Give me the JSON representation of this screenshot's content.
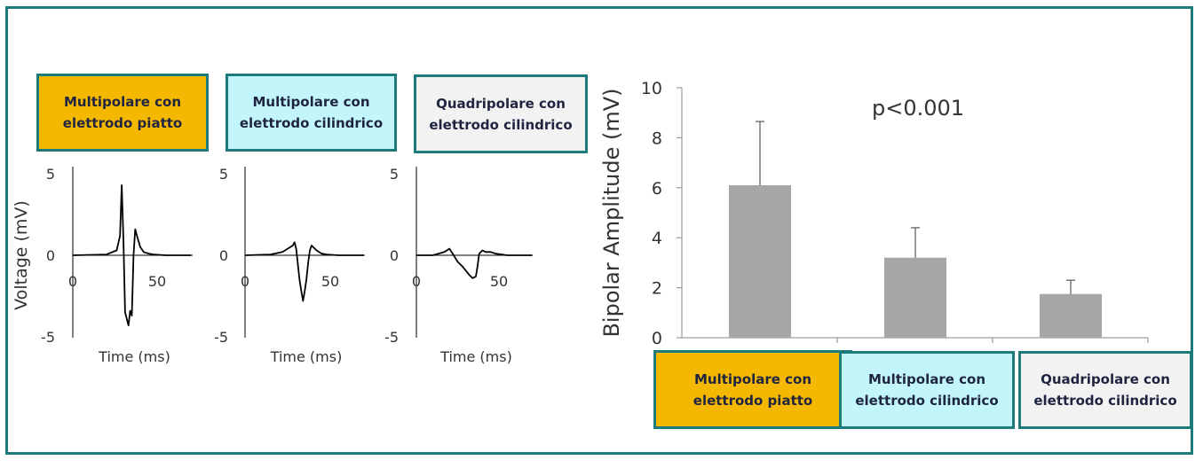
{
  "legend_boxes": [
    {
      "label": "Multipolare con\nelettrodo piatto",
      "bg": "#f5b800"
    },
    {
      "label": "Multipolare con\nelettrodo cilindrico",
      "bg": "#c2f6fb"
    },
    {
      "label": "Quadripolare con\nelettrodo cilindrico",
      "bg": "#f2f2f2"
    }
  ],
  "colors": {
    "frame": "#1e7b7b",
    "bar": "#a6a6a6",
    "axis": "#888888",
    "trace": "#000000"
  },
  "chart_data": [
    {
      "type": "line",
      "ylabel": "Voltage (mV)",
      "xlabel": "Time (ms)",
      "xlim": [
        0,
        70
      ],
      "ylim": [
        -5,
        5
      ],
      "xticks": [
        "0",
        "50"
      ],
      "yticks": [
        "5",
        "0",
        "-5"
      ],
      "series": [
        {
          "x": [
            0,
            20,
            26,
            28,
            29,
            30,
            31,
            33,
            34,
            35,
            36,
            37,
            38,
            40,
            42,
            45,
            48,
            55,
            70
          ],
          "y": [
            0,
            0.05,
            0.3,
            1.2,
            4.3,
            1.0,
            -3.5,
            -4.3,
            -3.4,
            -3.7,
            0,
            1.6,
            1.2,
            0.5,
            0.2,
            0.1,
            0.05,
            0,
            0
          ]
        }
      ]
    },
    {
      "type": "line",
      "ylabel": "",
      "xlabel": "Time (ms)",
      "xlim": [
        0,
        70
      ],
      "ylim": [
        -5,
        5
      ],
      "xticks": [
        "0",
        "50"
      ],
      "yticks": [
        "5",
        "0",
        "-5"
      ],
      "series": [
        {
          "x": [
            0,
            15,
            22,
            28,
            29,
            30,
            32,
            33,
            34,
            35,
            36,
            37,
            38,
            39,
            42,
            45,
            48,
            55,
            70
          ],
          "y": [
            0,
            0.05,
            0.2,
            0.6,
            0.8,
            0.4,
            -1.5,
            -2.2,
            -2.8,
            -2.2,
            -1.5,
            -0.5,
            0.3,
            0.6,
            0.3,
            0.1,
            0.05,
            0,
            0
          ]
        }
      ]
    },
    {
      "type": "line",
      "ylabel": "",
      "xlabel": "Time (ms)",
      "xlim": [
        0,
        70
      ],
      "ylim": [
        -5,
        5
      ],
      "xticks": [
        "0",
        "50"
      ],
      "yticks": [
        "5",
        "0",
        "-5"
      ],
      "series": [
        {
          "x": [
            0,
            10,
            17,
            20,
            22,
            25,
            28,
            32,
            34,
            36,
            37,
            38,
            40,
            42,
            45,
            48,
            55,
            70
          ],
          "y": [
            0,
            0,
            0.2,
            0.4,
            0.1,
            -0.4,
            -0.7,
            -1.2,
            -1.4,
            -1.3,
            -0.7,
            0.1,
            0.3,
            0.2,
            0.2,
            0.1,
            0,
            0
          ]
        }
      ]
    },
    {
      "type": "bar",
      "categories": [
        "Multipolare con elettrodo piatto",
        "Multipolare con elettrodo cilindrico",
        "Quadripolare con elettrodo cilindrico"
      ],
      "values": [
        6.1,
        3.2,
        1.75
      ],
      "errors": [
        2.55,
        1.2,
        0.55
      ],
      "ylabel": "Bipolar Amplitude (mV)",
      "ylim": [
        0,
        10
      ],
      "yticks": [
        "0",
        "2",
        "4",
        "6",
        "8",
        "10"
      ],
      "annotation": "p<0.001"
    }
  ]
}
